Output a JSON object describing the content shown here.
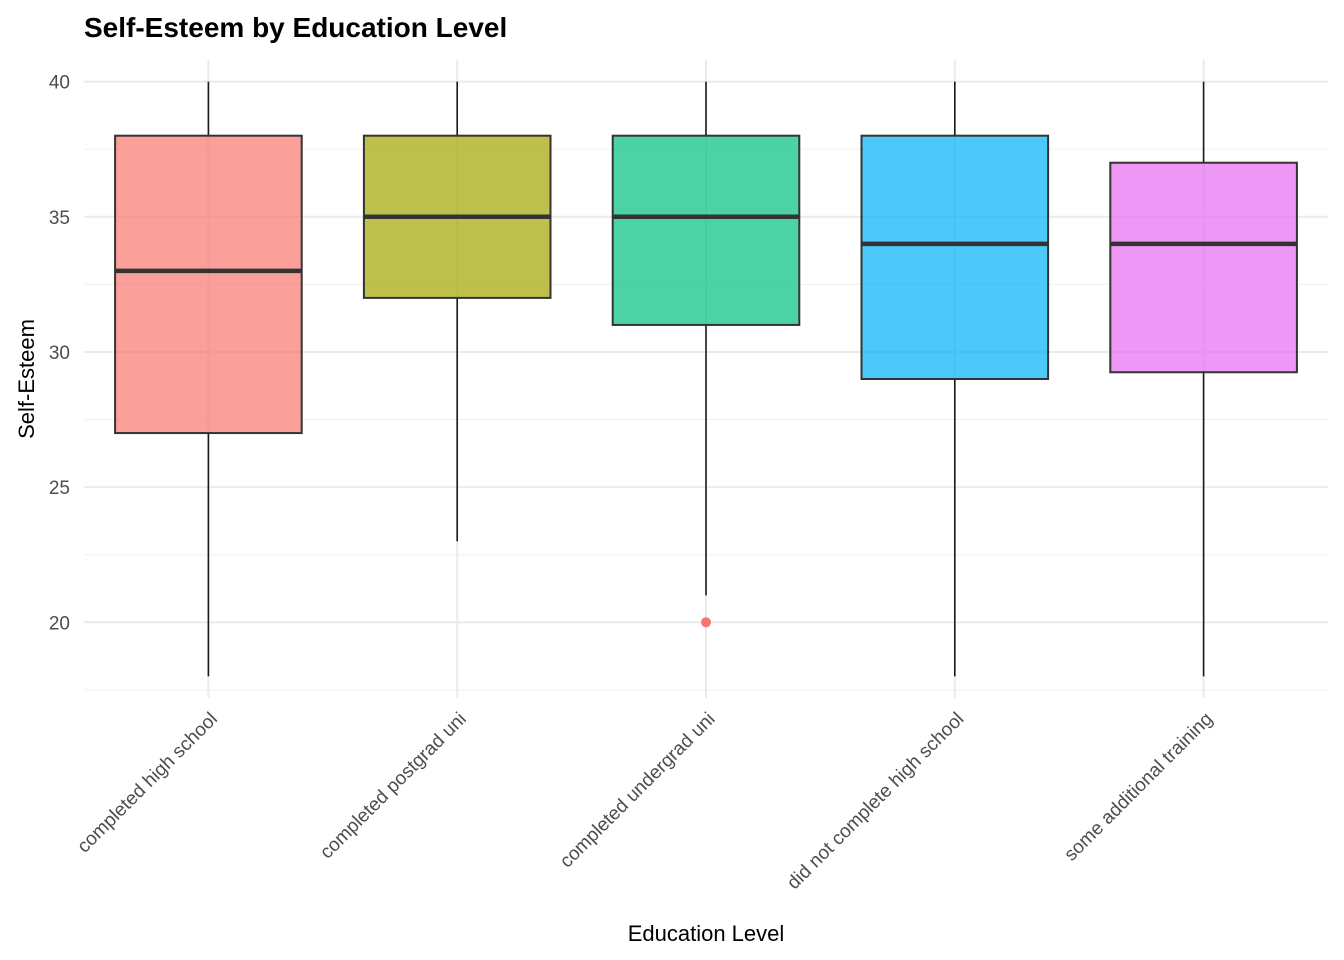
{
  "chart_data": {
    "type": "box",
    "title": "Self-Esteem by Education Level",
    "xlabel": "Education Level",
    "ylabel": "Self-Esteem",
    "ylim": [
      17.2,
      40.8
    ],
    "yticks": [
      20,
      25,
      30,
      35,
      40
    ],
    "grid": true,
    "legend": "none",
    "categories": [
      "completed high school",
      "completed postgrad uni",
      "completed undergrad uni",
      "did not complete high school",
      "some additional training"
    ],
    "boxes": [
      {
        "category": "completed high school",
        "whisker_low": 18,
        "q1": 27,
        "median": 33,
        "q3": 38,
        "whisker_high": 40,
        "outliers": [],
        "color": "#F8766D"
      },
      {
        "category": "completed postgrad uni",
        "whisker_low": 23,
        "q1": 32,
        "median": 35,
        "q3": 38,
        "whisker_high": 40,
        "outliers": [],
        "color": "#A3A500"
      },
      {
        "category": "completed undergrad uni",
        "whisker_low": 21,
        "q1": 31,
        "median": 35,
        "q3": 38,
        "whisker_high": 40,
        "outliers": [
          20
        ],
        "color": "#00BF7D"
      },
      {
        "category": "did not complete high school",
        "whisker_low": 18,
        "q1": 29,
        "median": 34,
        "q3": 38,
        "whisker_high": 40,
        "outliers": [],
        "color": "#00B0F6"
      },
      {
        "category": "some additional training",
        "whisker_low": 18,
        "q1": 29.25,
        "median": 34,
        "q3": 37,
        "whisker_high": 40,
        "outliers": [],
        "color": "#E76BF3"
      }
    ],
    "outlier_color": "#F8766D",
    "box_opacity": 0.7
  }
}
